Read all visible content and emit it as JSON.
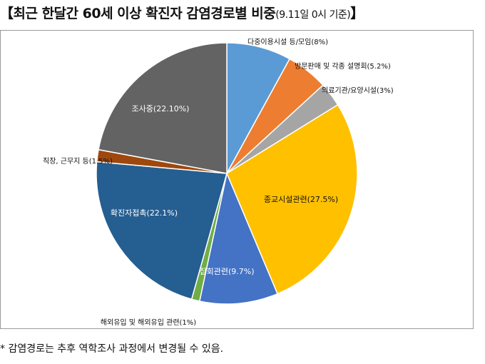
{
  "header": {
    "title": "【최근 한달간 60세 이상 확진자 감염경로별 비중",
    "subtitle": "(9.11일 0시 기준)",
    "close_bracket": "】"
  },
  "footnote": "* 감염경로는 추후 역학조사 과정에서 변경될 수 있음.",
  "chart_data": {
    "type": "pie",
    "title": "",
    "start_angle_deg": 0,
    "slices": [
      {
        "label": "다중이용시설 등/모임(8%)",
        "value": 8,
        "color": "#5b9bd5"
      },
      {
        "label": "방문판매 및 각종 설명회(5.2%)",
        "value": 5.2,
        "color": "#ed7d31"
      },
      {
        "label": "의료기관/요양시설(3%)",
        "value": 3,
        "color": "#a5a5a5"
      },
      {
        "label": "종교시설관련(27.5%)",
        "value": 27.5,
        "color": "#ffc000"
      },
      {
        "label": "집회관련(9.7%)",
        "value": 9.7,
        "color": "#4472c4"
      },
      {
        "label": "해외유입 및 해외유입 관련(1%)",
        "value": 1,
        "color": "#70ad47"
      },
      {
        "label": "확진자접촉(22.1%)",
        "value": 22.1,
        "color": "#255e91"
      },
      {
        "label": "직장, 근무지 등(1.5%)",
        "value": 1.5,
        "color": "#9e480e"
      },
      {
        "label": "조사중(22.10%)",
        "value": 22.1,
        "color": "#636363"
      }
    ]
  }
}
